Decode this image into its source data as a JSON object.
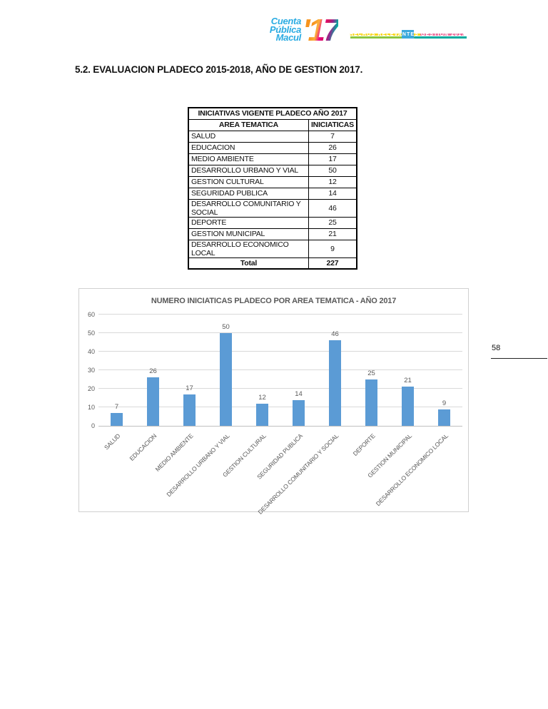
{
  "page": {
    "number": "58"
  },
  "header": {
    "logo": {
      "line1": "Cuenta",
      "line2": "Pública",
      "line3": "Macul",
      "year": "'17"
    },
    "banner_text": "HECHOS RELEVANTES GESTION 2017",
    "colors": {
      "logo_blue": "#29ABE2",
      "banner_blue": "#3BA9DC",
      "stripe_yellow": "#F9D616",
      "stripe_pink": "#EC6E9C",
      "stripe_green": "#8CC63F",
      "stripe_teal": "#00A99D"
    }
  },
  "heading": "5.2. EVALUACION PLADECO 2015-2018, AÑO DE GESTION 2017.",
  "table": {
    "title": "INICIATIVAS VIGENTE PLADECO AÑO 2017",
    "columns": [
      "AREA TEMATICA",
      "INICIATICAS"
    ],
    "rows": [
      {
        "area": "SALUD",
        "value": "7"
      },
      {
        "area": "EDUCACION",
        "value": "26"
      },
      {
        "area": "MEDIO AMBIENTE",
        "value": "17"
      },
      {
        "area": "DESARROLLO URBANO Y VIAL",
        "value": "50"
      },
      {
        "area": "GESTION CULTURAL",
        "value": "12"
      },
      {
        "area": "SEGURIDAD PUBLICA",
        "value": "14"
      },
      {
        "area": "DESARROLLO COMUNITARIO Y SOCIAL",
        "value": "46"
      },
      {
        "area": "DEPORTE",
        "value": "25"
      },
      {
        "area": "GESTION MUNICIPAL",
        "value": "21"
      },
      {
        "area": "DESARROLLO ECONOMICO LOCAL",
        "value": "9"
      }
    ],
    "total_label": "Total",
    "total_value": "227"
  },
  "chart_data": {
    "type": "bar",
    "title": "NUMERO INICIATICAS PLADECO POR AREA TEMATICA - AÑO 2017",
    "categories": [
      "SALUD",
      "EDUCACION",
      "MEDIO AMBIENTE",
      "DESARROLLO URBANO Y VIAL",
      "GESTION CULTURAL",
      "SEGURIDAD PUBLICA",
      "DESARROLLO COMUNITARIO Y SOCIAL",
      "DEPORTE",
      "GESTION MUNICIPAL",
      "DESARROLLO ECONOMICO LOCAL"
    ],
    "values": [
      7,
      26,
      17,
      50,
      12,
      14,
      46,
      25,
      21,
      9
    ],
    "xlabel": "",
    "ylabel": "",
    "ylim": [
      0,
      60
    ],
    "ytick_step": 10,
    "grid": true,
    "legend": false,
    "bar_color": "#5B9BD5",
    "label_color": "#595959"
  }
}
